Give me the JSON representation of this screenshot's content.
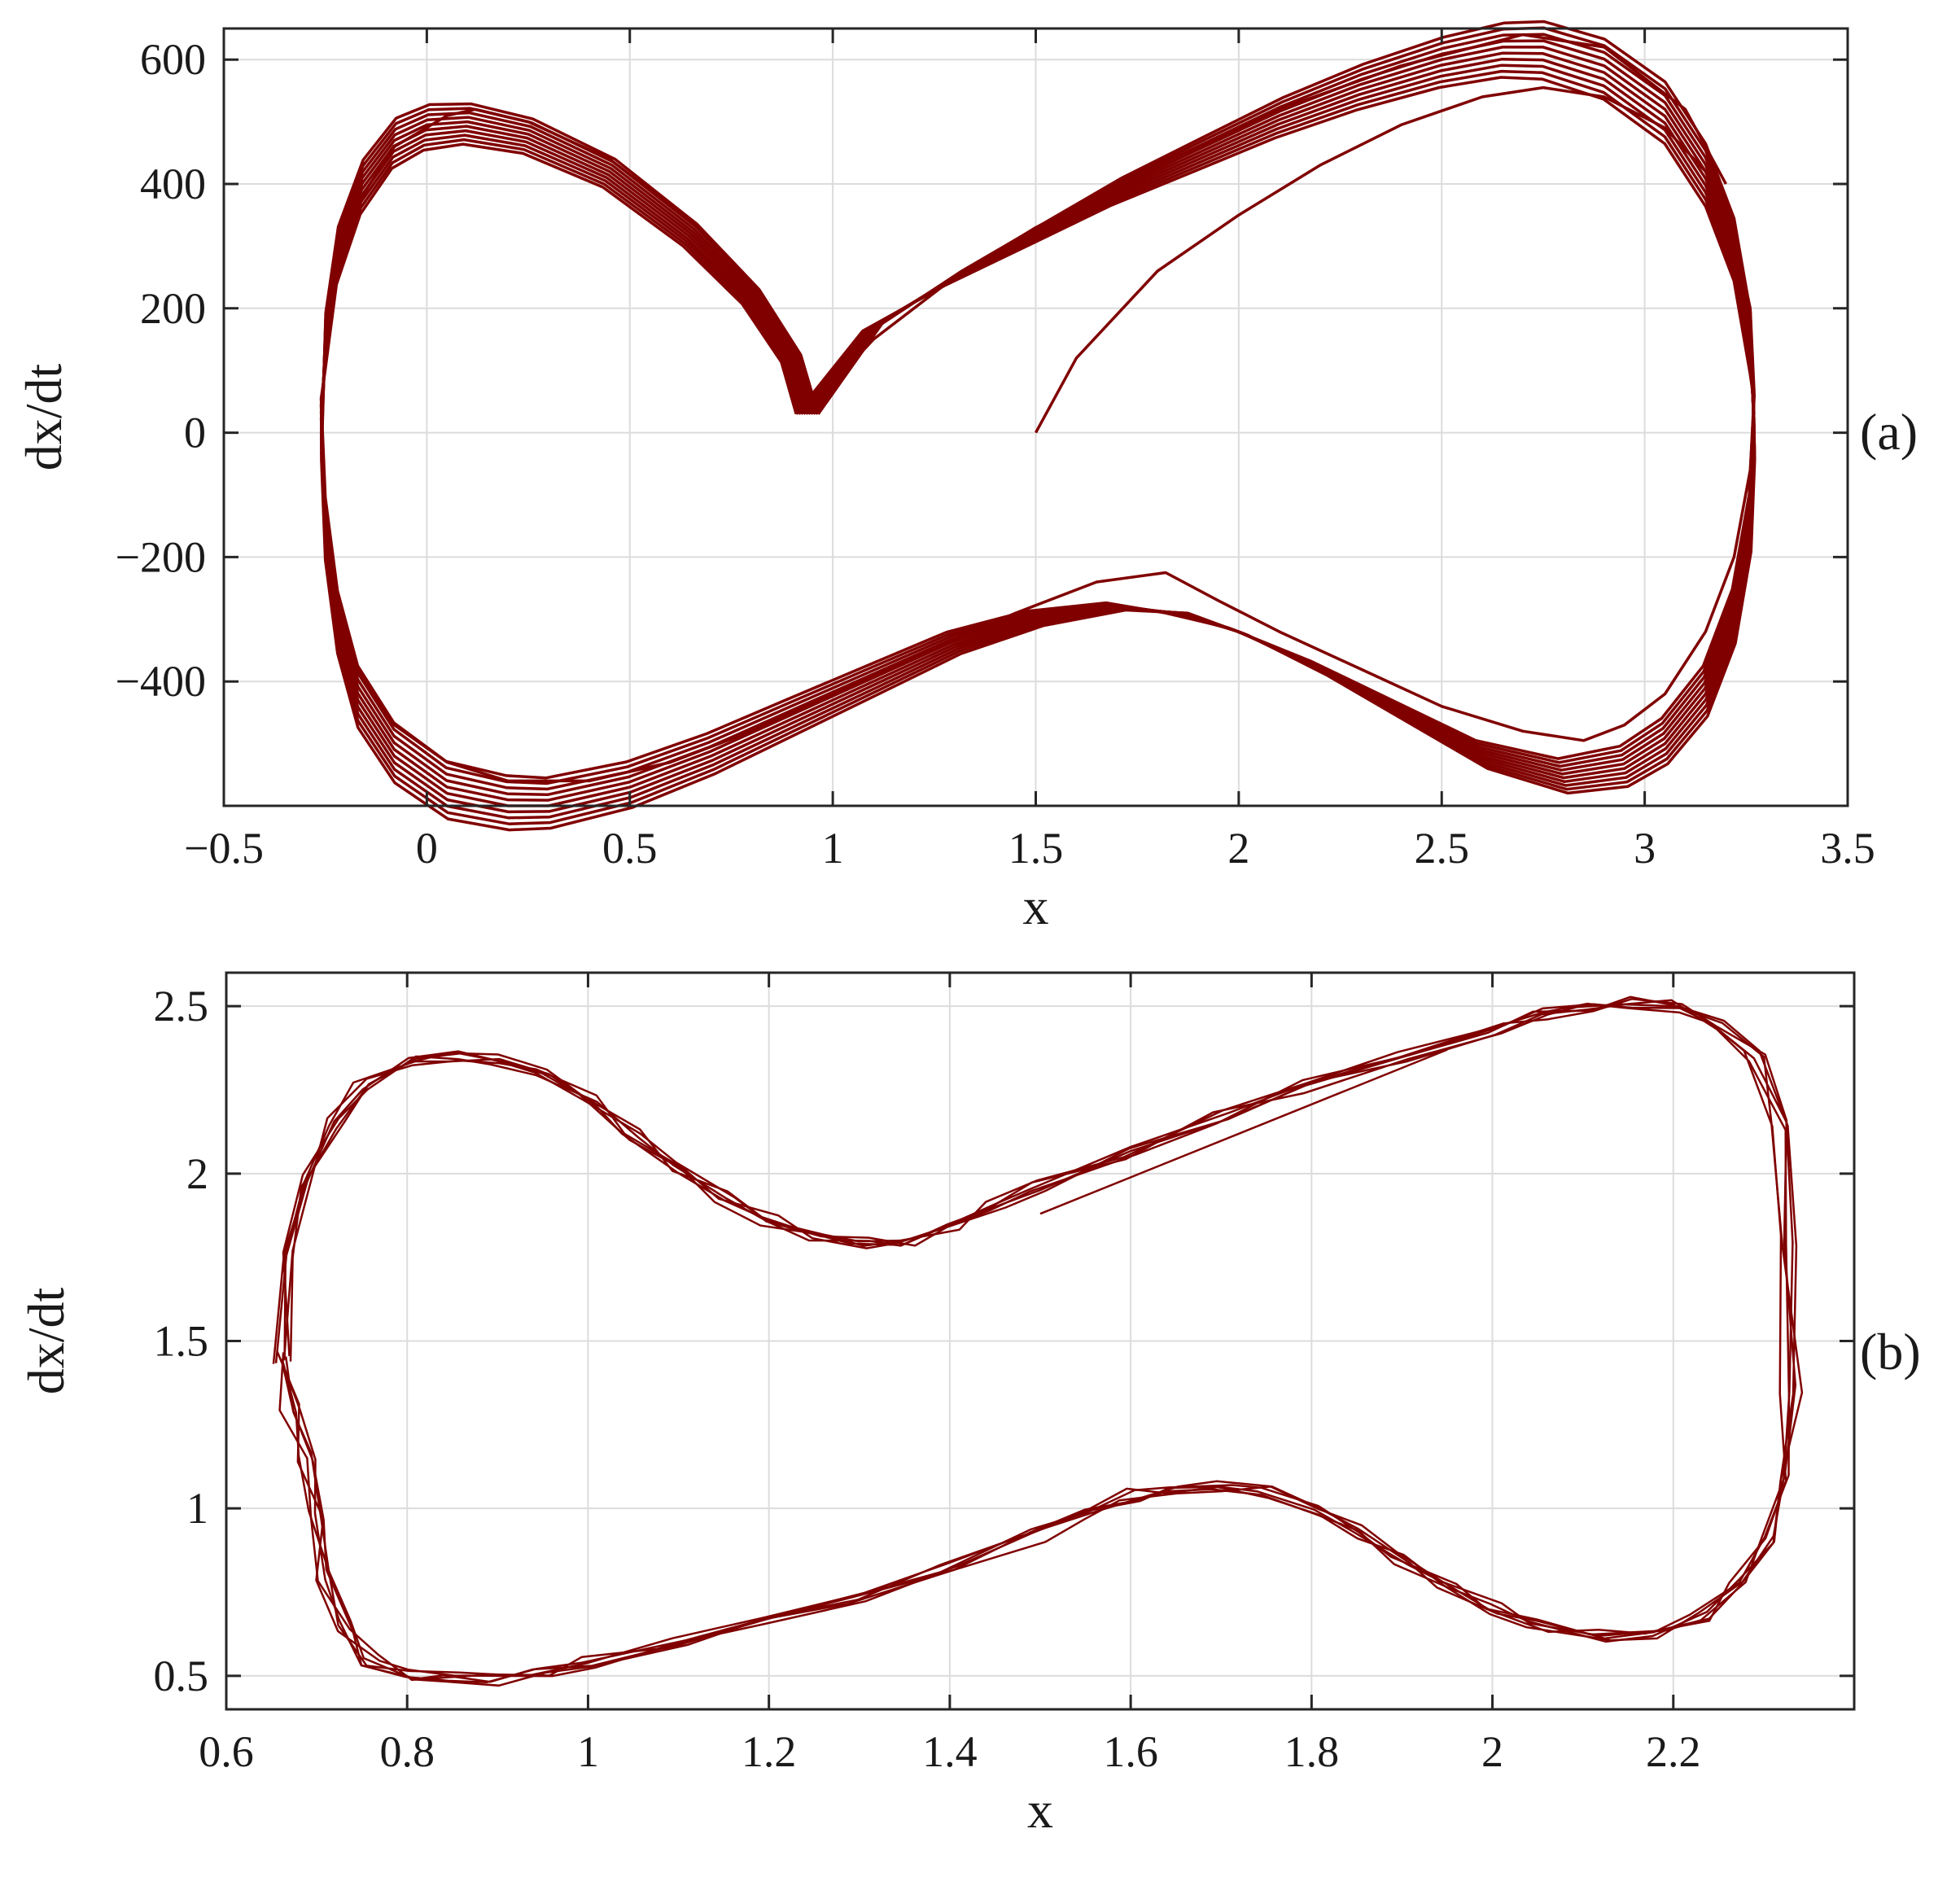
{
  "figure": {
    "trajectory_color": "#800000"
  },
  "chart_data": [
    {
      "panel": "(a)",
      "type": "line",
      "xlabel": "x",
      "ylabel": "dx/dt",
      "xlim": [
        -0.5,
        3.5
      ],
      "ylim": [
        -600,
        650
      ],
      "grid": true,
      "xticks": [
        -0.5,
        0,
        0.5,
        1,
        1.5,
        2,
        2.5,
        3,
        3.5
      ],
      "xtick_labels": [
        "−0.5",
        "0",
        "0.5",
        "1",
        "1.5",
        "2",
        "2.5",
        "3",
        "3.5"
      ],
      "yticks": [
        -400,
        -200,
        0,
        200,
        400,
        600
      ],
      "ytick_labels": [
        "−400",
        "−200",
        "0",
        "200",
        "400",
        "600"
      ],
      "initial_point": {
        "x": 1.5,
        "y": 0
      },
      "transient_path": [
        [
          1.5,
          0
        ],
        [
          1.6,
          120
        ],
        [
          1.8,
          260
        ],
        [
          2.0,
          350
        ],
        [
          2.2,
          430
        ],
        [
          2.4,
          495
        ],
        [
          2.6,
          540
        ],
        [
          2.75,
          555
        ],
        [
          2.9,
          540
        ],
        [
          3.05,
          490
        ],
        [
          3.15,
          420
        ],
        [
          3.22,
          320
        ],
        [
          3.26,
          200
        ],
        [
          3.27,
          60
        ],
        [
          3.26,
          -60
        ],
        [
          3.22,
          -200
        ],
        [
          3.15,
          -320
        ],
        [
          3.05,
          -420
        ],
        [
          2.95,
          -470
        ],
        [
          2.85,
          -495
        ],
        [
          2.7,
          -480
        ],
        [
          2.5,
          -440
        ],
        [
          2.3,
          -380
        ],
        [
          2.1,
          -320
        ],
        [
          1.95,
          -270
        ],
        [
          1.82,
          -225
        ],
        [
          1.65,
          -240
        ],
        [
          1.45,
          -290
        ],
        [
          1.2,
          -360
        ],
        [
          1.0,
          -420
        ],
        [
          0.8,
          -480
        ],
        [
          0.6,
          -530
        ],
        [
          0.4,
          -560
        ],
        [
          0.2,
          -560
        ],
        [
          0.05,
          -530
        ],
        [
          -0.08,
          -470
        ],
        [
          -0.17,
          -380
        ],
        [
          -0.22,
          -260
        ],
        [
          -0.25,
          -120
        ],
        [
          -0.26,
          0
        ],
        [
          -0.25,
          130
        ],
        [
          -0.22,
          260
        ],
        [
          -0.16,
          380
        ],
        [
          -0.08,
          460
        ],
        [
          0.05,
          510
        ],
        [
          0.12,
          520
        ],
        [
          0.25,
          500
        ],
        [
          0.45,
          440
        ],
        [
          0.65,
          340
        ],
        [
          0.8,
          240
        ],
        [
          0.9,
          120
        ],
        [
          0.94,
          35
        ],
        [
          1.0,
          80
        ],
        [
          1.1,
          150
        ],
        [
          1.3,
          250
        ],
        [
          1.5,
          330
        ],
        [
          1.8,
          430
        ],
        [
          2.1,
          520
        ],
        [
          2.4,
          590
        ],
        [
          2.7,
          640
        ],
        [
          2.9,
          620
        ],
        [
          3.1,
          520
        ],
        [
          3.2,
          400
        ]
      ],
      "limit_cycle": {
        "x": [
          0.94,
          1.1,
          1.3,
          1.5,
          1.7,
          1.9,
          2.1,
          2.3,
          2.5,
          2.65,
          2.75,
          2.9,
          3.05,
          3.15,
          3.22,
          3.26,
          3.27,
          3.26,
          3.22,
          3.15,
          3.05,
          2.95,
          2.8,
          2.6,
          2.4,
          2.2,
          2.0,
          1.85,
          1.7,
          1.5,
          1.3,
          1.1,
          0.9,
          0.7,
          0.5,
          0.3,
          0.2,
          0.05,
          -0.08,
          -0.17,
          -0.22,
          -0.25,
          -0.26,
          -0.25,
          -0.22,
          -0.16,
          -0.08,
          0.0,
          0.1,
          0.25,
          0.45,
          0.65,
          0.8,
          0.9,
          0.94
        ],
        "y": [
          30,
          170,
          250,
          320,
          390,
          450,
          510,
          560,
          600,
          620,
          620,
          590,
          520,
          420,
          300,
          150,
          0,
          -150,
          -300,
          -420,
          -500,
          -540,
          -555,
          -520,
          -450,
          -380,
          -320,
          -290,
          -280,
          -300,
          -340,
          -400,
          -460,
          -520,
          -570,
          -600,
          -600,
          -580,
          -520,
          -430,
          -310,
          -160,
          0,
          150,
          290,
          400,
          470,
          495,
          500,
          480,
          420,
          320,
          220,
          120,
          30
        ],
        "loops": 10,
        "dy_spread": [
          -70,
          70
        ],
        "dx_spread": [
          -0.03,
          0.03
        ]
      }
    },
    {
      "panel": "(b)",
      "type": "line",
      "xlabel": "x",
      "ylabel": "dx/dt",
      "xlim": [
        0.6,
        2.4
      ],
      "ylim": [
        0.4,
        2.6
      ],
      "grid": true,
      "xticks": [
        0.6,
        0.8,
        1.0,
        1.2,
        1.4,
        1.6,
        1.8,
        2.0,
        2.2
      ],
      "xtick_labels": [
        "0.6",
        "0.8",
        "1",
        "1.2",
        "1.4",
        "1.6",
        "1.8",
        "2",
        "2.2"
      ],
      "yticks": [
        0.5,
        1.0,
        1.5,
        2.0,
        2.5
      ],
      "ytick_labels": [
        "0.5",
        "1",
        "1.5",
        "2",
        "2.5"
      ],
      "limit_cycle": {
        "x": [
          0.66,
          0.67,
          0.69,
          0.72,
          0.75,
          0.8,
          0.85,
          0.9,
          0.95,
          1.0,
          1.05,
          1.1,
          1.15,
          1.2,
          1.25,
          1.3,
          1.35,
          1.4,
          1.45,
          1.5,
          1.6,
          1.7,
          1.8,
          1.9,
          2.0,
          2.05,
          2.1,
          2.15,
          2.2,
          2.25,
          2.29,
          2.32,
          2.33,
          2.33,
          2.32,
          2.3,
          2.27,
          2.23,
          2.18,
          2.12,
          2.05,
          2.0,
          1.95,
          1.9,
          1.85,
          1.8,
          1.75,
          1.7,
          1.65,
          1.6,
          1.55,
          1.5,
          1.4,
          1.3,
          1.2,
          1.1,
          1.0,
          0.95,
          0.9,
          0.85,
          0.8,
          0.76,
          0.73,
          0.71,
          0.7,
          0.69,
          0.67,
          0.66
        ],
        "y": [
          1.45,
          1.75,
          1.98,
          2.15,
          2.27,
          2.33,
          2.35,
          2.34,
          2.3,
          2.22,
          2.12,
          2.02,
          1.93,
          1.86,
          1.81,
          1.79,
          1.8,
          1.84,
          1.9,
          1.96,
          2.06,
          2.17,
          2.26,
          2.35,
          2.43,
          2.48,
          2.5,
          2.51,
          2.5,
          2.45,
          2.35,
          2.15,
          1.8,
          1.35,
          1.1,
          0.9,
          0.77,
          0.68,
          0.63,
          0.62,
          0.65,
          0.7,
          0.77,
          0.85,
          0.93,
          1.0,
          1.05,
          1.07,
          1.06,
          1.04,
          0.98,
          0.92,
          0.82,
          0.73,
          0.66,
          0.6,
          0.54,
          0.51,
          0.49,
          0.49,
          0.5,
          0.55,
          0.65,
          0.8,
          0.98,
          1.15,
          1.3,
          1.45
        ],
        "loops": 6,
        "noise_x": 0.025,
        "noise_y": 0.04,
        "tail": [
          [
            1.5,
            1.88
          ],
          [
            1.95,
            2.37
          ]
        ]
      }
    }
  ]
}
